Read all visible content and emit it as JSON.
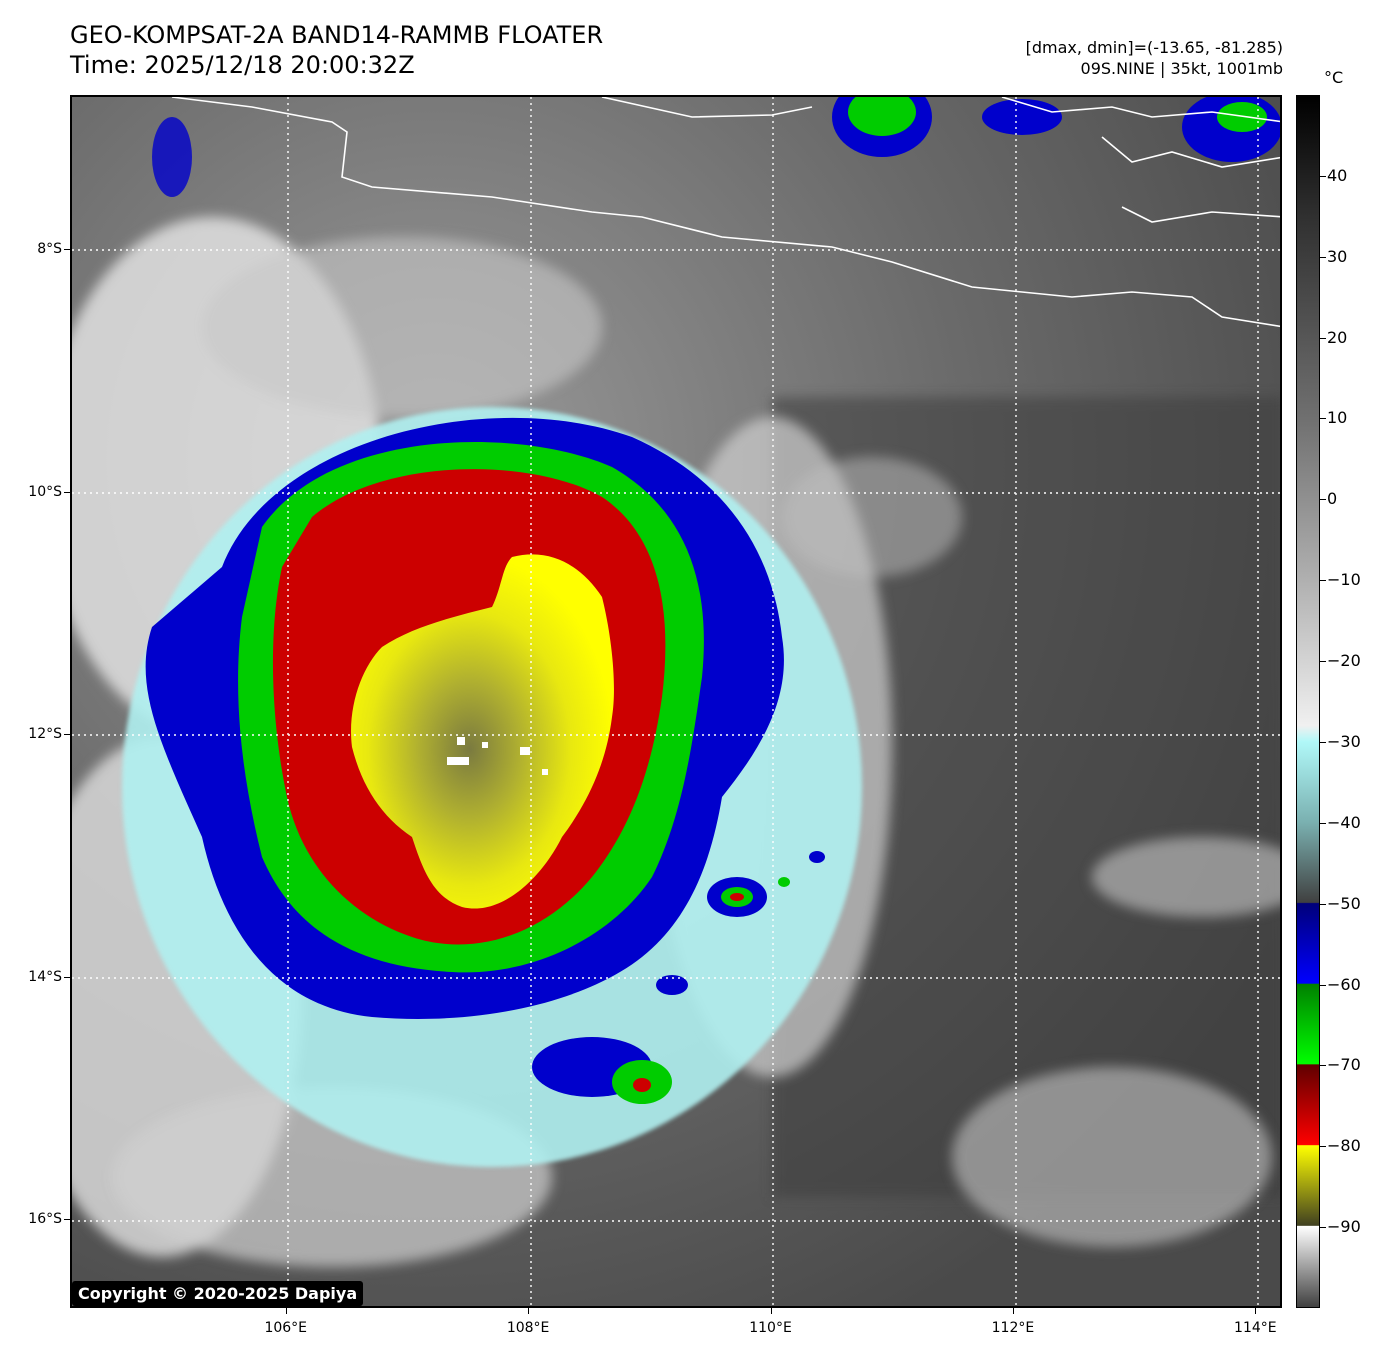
{
  "header": {
    "title_line1": "GEO-KOMPSAT-2A BAND14-RAMMB FLOATER",
    "title_line2": "Time: 2025/12/18 20:00:32Z",
    "info_line1": "[dmax, dmin]=(-13.65, -81.285)",
    "info_line2": "09S.NINE | 35kt, 1001mb"
  },
  "colorbar": {
    "unit": "°C",
    "ticks": [
      "40",
      "30",
      "20",
      "10",
      "0",
      "−10",
      "−20",
      "−30",
      "−40",
      "−50",
      "−60",
      "−70",
      "−80",
      "−90"
    ],
    "tick_values": [
      40,
      30,
      20,
      10,
      0,
      -10,
      -20,
      -30,
      -40,
      -50,
      -60,
      -70,
      -80,
      -90
    ],
    "range": [
      -100,
      50
    ]
  },
  "map": {
    "lat_labels": [
      "8°S",
      "10°S",
      "12°S",
      "14°S",
      "16°S"
    ],
    "lat_values": [
      -8,
      -10,
      -12,
      -14,
      -16
    ],
    "lon_labels": [
      "106°E",
      "108°E",
      "110°E",
      "112°E",
      "114°E"
    ],
    "lon_values": [
      106,
      108,
      110,
      112,
      114
    ],
    "lon_range": [
      104.22,
      114.22
    ],
    "lat_range": [
      -6.73,
      -16.73
    ],
    "colors": {
      "blue": "#0000cc",
      "green": "#00cc00",
      "red": "#cc0000",
      "yellow": "#ffff00",
      "cyan": "#b0f0f0",
      "coastline": "#ffffff"
    }
  },
  "copyright": "Copyright © 2020-2025 Dapiya"
}
